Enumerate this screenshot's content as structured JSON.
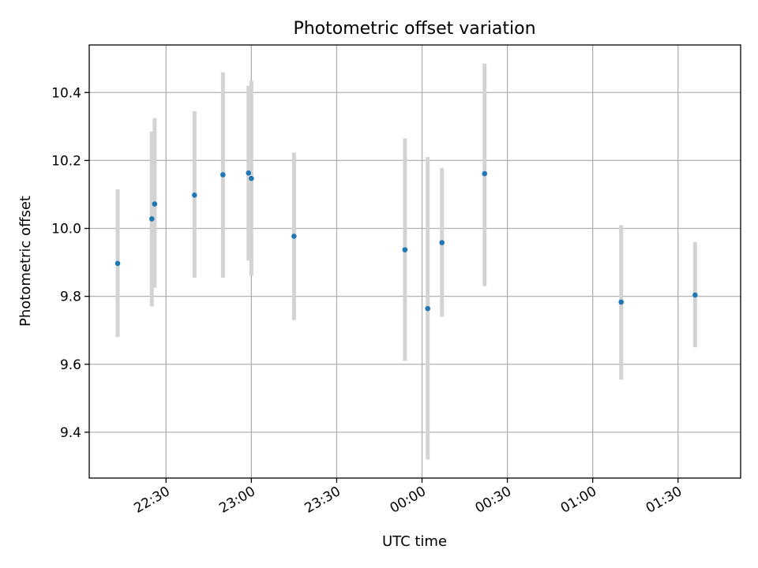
{
  "chart_data": {
    "type": "scatter",
    "title": "Photometric offset variation",
    "xlabel": "UTC time",
    "ylabel": "Photometric offset",
    "x_axis_type": "time",
    "x_range": [
      "22:03",
      "01:52"
    ],
    "ylim": [
      9.265,
      10.54
    ],
    "x_ticks": [
      "22:30",
      "23:00",
      "23:30",
      "00:00",
      "00:30",
      "01:00",
      "01:30"
    ],
    "y_ticks": [
      "9.4",
      "9.6",
      "9.8",
      "10.0",
      "10.2",
      "10.4"
    ],
    "grid": true,
    "colors": {
      "point": "#1f77b4",
      "errorbar": "#d3d3d3",
      "grid": "#b0b0b0"
    },
    "points": [
      {
        "time": "22:13",
        "y": 9.897,
        "y_low": 9.68,
        "y_high": 10.115
      },
      {
        "time": "22:25",
        "y": 10.028,
        "y_low": 9.77,
        "y_high": 10.285
      },
      {
        "time": "22:26",
        "y": 10.072,
        "y_low": 9.825,
        "y_high": 10.325
      },
      {
        "time": "22:40",
        "y": 10.098,
        "y_low": 9.855,
        "y_high": 10.345
      },
      {
        "time": "22:50",
        "y": 10.158,
        "y_low": 9.855,
        "y_high": 10.46
      },
      {
        "time": "22:59",
        "y": 10.163,
        "y_low": 9.905,
        "y_high": 10.42
      },
      {
        "time": "23:00",
        "y": 10.147,
        "y_low": 9.86,
        "y_high": 10.435
      },
      {
        "time": "23:15",
        "y": 9.977,
        "y_low": 9.73,
        "y_high": 10.223
      },
      {
        "time": "23:54",
        "y": 9.937,
        "y_low": 9.61,
        "y_high": 10.265
      },
      {
        "time": "00:02",
        "y": 9.764,
        "y_low": 9.32,
        "y_high": 10.21
      },
      {
        "time": "00:07",
        "y": 9.958,
        "y_low": 9.74,
        "y_high": 10.178
      },
      {
        "time": "00:22",
        "y": 10.161,
        "y_low": 9.83,
        "y_high": 10.485
      },
      {
        "time": "01:10",
        "y": 9.783,
        "y_low": 9.555,
        "y_high": 10.01
      },
      {
        "time": "01:36",
        "y": 9.804,
        "y_low": 9.65,
        "y_high": 9.96
      }
    ]
  }
}
